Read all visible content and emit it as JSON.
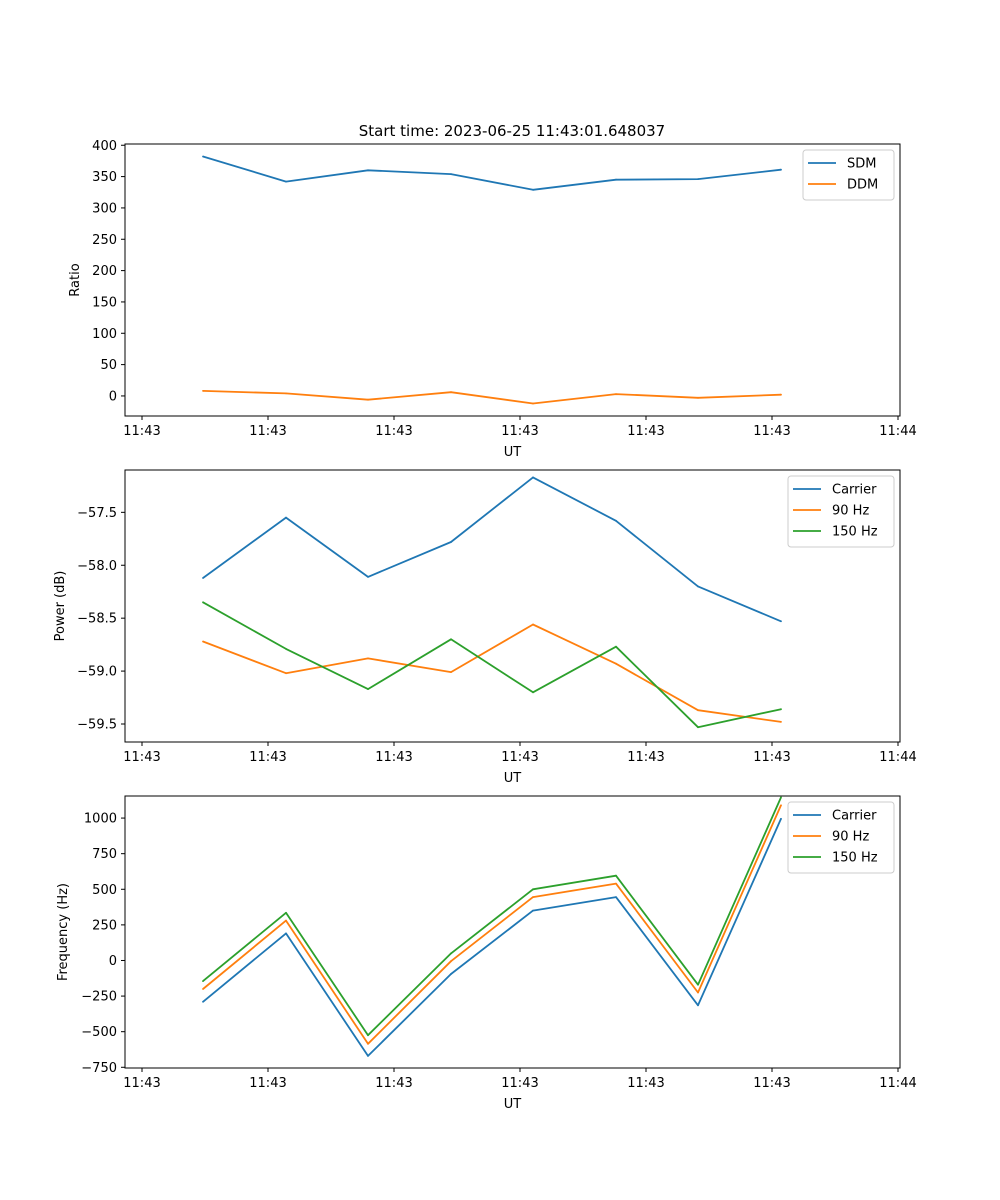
{
  "title": "Start time: 2023-06-25 11:43:01.648037",
  "chart_data": [
    {
      "type": "line",
      "xlabel": "UT",
      "ylabel": "Ratio",
      "x_tick_labels": [
        "11:43",
        "11:43",
        "11:43",
        "11:43",
        "11:43",
        "11:43",
        "11:43",
        "11:44"
      ],
      "y_tick_labels": [
        "0",
        "50",
        "100",
        "150",
        "200",
        "250",
        "300",
        "350",
        "400"
      ],
      "ylim": [
        -32,
        402
      ],
      "legend": "top-right",
      "grid": false,
      "series": [
        {
          "name": "SDM",
          "color": "#1f77b4",
          "values": [
            382,
            342,
            360,
            354,
            329,
            345,
            346,
            361
          ]
        },
        {
          "name": "DDM",
          "color": "#ff7f0e",
          "values": [
            8,
            4,
            -6,
            6,
            -12,
            3,
            -3,
            2
          ]
        }
      ]
    },
    {
      "type": "line",
      "xlabel": "UT",
      "ylabel": "Power (dB)",
      "x_tick_labels": [
        "11:43",
        "11:43",
        "11:43",
        "11:43",
        "11:43",
        "11:43",
        "11:43",
        "11:44"
      ],
      "y_tick_labels": [
        "−59.5",
        "−59.0",
        "−58.5",
        "−58.0",
        "−57.5"
      ],
      "ylim": [
        -59.67,
        -57.1
      ],
      "legend": "top-right",
      "grid": false,
      "series": [
        {
          "name": "Carrier",
          "color": "#1f77b4",
          "values": [
            -58.12,
            -57.55,
            -58.11,
            -57.78,
            -57.17,
            -57.58,
            -58.2,
            -58.53
          ]
        },
        {
          "name": "90 Hz",
          "color": "#ff7f0e",
          "values": [
            -58.72,
            -59.02,
            -58.88,
            -59.01,
            -58.56,
            -58.93,
            -59.37,
            -59.48
          ]
        },
        {
          "name": "150 Hz",
          "color": "#2ca02c",
          "values": [
            -58.35,
            -58.79,
            -59.17,
            -58.7,
            -59.2,
            -58.77,
            -59.53,
            -59.36
          ]
        }
      ]
    },
    {
      "type": "line",
      "xlabel": "UT",
      "ylabel": "Frequency (Hz)",
      "x_tick_labels": [
        "11:43",
        "11:43",
        "11:43",
        "11:43",
        "11:43",
        "11:43",
        "11:43",
        "11:44"
      ],
      "y_tick_labels": [
        "−750",
        "−500",
        "−250",
        "0",
        "250",
        "500",
        "750",
        "1000"
      ],
      "ylim": [
        -755,
        1155
      ],
      "legend": "top-right",
      "grid": false,
      "series": [
        {
          "name": "Carrier",
          "color": "#1f77b4",
          "values": [
            -290,
            190,
            -670,
            -95,
            350,
            445,
            -315,
            995
          ]
        },
        {
          "name": "90 Hz",
          "color": "#ff7f0e",
          "values": [
            -200,
            280,
            -585,
            -5,
            445,
            540,
            -225,
            1090
          ]
        },
        {
          "name": "150 Hz",
          "color": "#2ca02c",
          "values": [
            -145,
            335,
            -525,
            50,
            500,
            595,
            -170,
            1145
          ]
        }
      ]
    }
  ]
}
